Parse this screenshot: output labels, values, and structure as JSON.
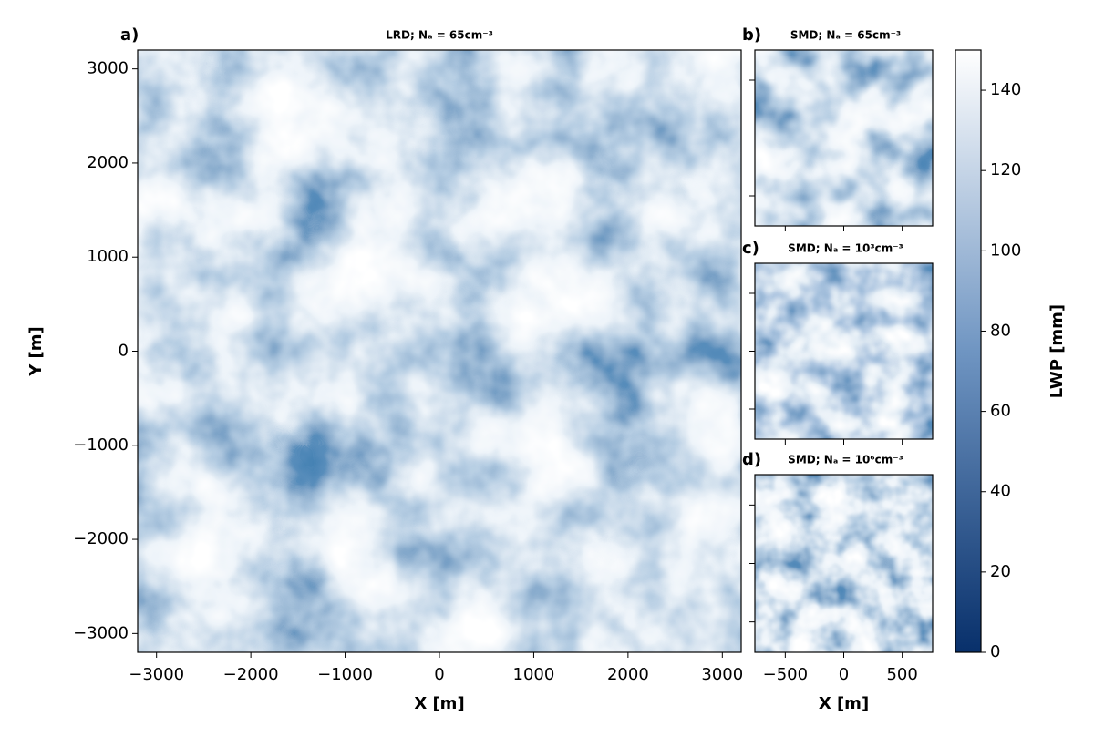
{
  "chart_data": [
    {
      "type": "heatmap",
      "panel_label": "a)",
      "title": "LRD; Nₐ = 65cm⁻³",
      "xlabel": "X [m]",
      "ylabel": "Y [m]",
      "xlim": [
        -3200,
        3200
      ],
      "ylim": [
        -3200,
        3200
      ],
      "xticks": [
        {
          "value": -3000,
          "label": "−3000"
        },
        {
          "value": -2000,
          "label": "−2000"
        },
        {
          "value": -1000,
          "label": "−1000"
        },
        0,
        1000,
        2000,
        3000
      ],
      "yticks": [
        {
          "value": -3000,
          "label": "−3000"
        },
        {
          "value": -2000,
          "label": "−2000"
        },
        {
          "value": -1000,
          "label": "−1000"
        },
        0,
        1000,
        2000,
        3000
      ],
      "colorbar": {
        "label": "LWP [mm]",
        "lim": [
          0,
          150
        ],
        "ticks": [
          0,
          20,
          40,
          60,
          80,
          100,
          120,
          140
        ],
        "colors": [
          "#08306b",
          "#6f95c2",
          "#ffffff"
        ]
      }
    },
    {
      "type": "heatmap",
      "panel_label": "b)",
      "title": "SMD; Nₐ = 65cm⁻³",
      "xlim": [
        -760,
        760
      ],
      "ylim": [
        -760,
        760
      ],
      "xticks_unlabeled": [
        -500,
        0,
        500
      ],
      "yticks_unlabeled": [
        -500,
        0,
        500
      ]
    },
    {
      "type": "heatmap",
      "panel_label": "c)",
      "title": "SMD; Nₐ = 10³cm⁻³",
      "xlim": [
        -760,
        760
      ],
      "ylim": [
        -760,
        760
      ],
      "xticks_unlabeled": [
        -500,
        0,
        500
      ],
      "yticks_unlabeled": [
        -500,
        0,
        500
      ]
    },
    {
      "type": "heatmap",
      "panel_label": "d)",
      "title": "SMD; Nₐ = 10⁶cm⁻³",
      "xlabel": "X [m]",
      "xlim": [
        -760,
        760
      ],
      "ylim": [
        -760,
        760
      ],
      "xticks": [
        {
          "value": -500,
          "label": "−500"
        },
        0,
        500
      ],
      "yticks_unlabeled": [
        -500,
        0,
        500
      ]
    }
  ]
}
